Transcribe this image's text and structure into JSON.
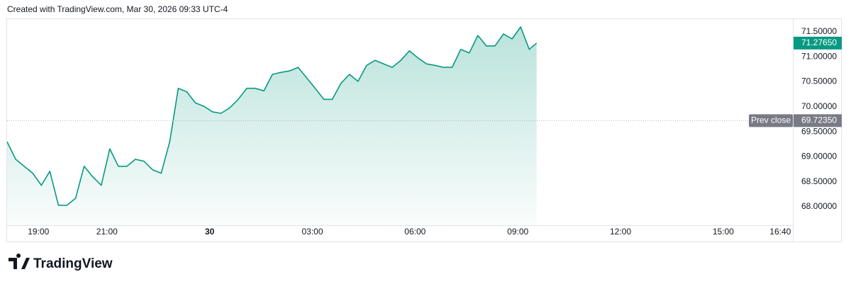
{
  "chart_data": {
    "type": "area",
    "title": "Created with TradingView.com, Mar 30, 2026 09:33 UTC-4",
    "brand": "TradingView",
    "color": "#089981",
    "x": [
      "18:05",
      "18:20",
      "18:35",
      "18:50",
      "19:05",
      "19:20",
      "19:35",
      "19:50",
      "20:05",
      "20:20",
      "20:35",
      "20:50",
      "21:05",
      "21:20",
      "21:35",
      "21:50",
      "22:05",
      "22:20",
      "22:35",
      "22:50",
      "23:05",
      "23:20",
      "23:35",
      "23:50",
      "00:05",
      "00:20",
      "00:35",
      "00:50",
      "01:05",
      "01:20",
      "01:35",
      "01:50",
      "02:05",
      "02:20",
      "02:35",
      "02:50",
      "03:05",
      "03:20",
      "03:35",
      "03:50",
      "04:05",
      "04:20",
      "04:35",
      "04:50",
      "05:05",
      "05:20",
      "05:35",
      "05:50",
      "06:05",
      "06:20",
      "06:35",
      "06:50",
      "07:05",
      "07:20",
      "07:35",
      "07:50",
      "08:05",
      "08:20",
      "08:35",
      "08:50",
      "09:05",
      "09:20",
      "09:33"
    ],
    "values": [
      69.3,
      68.95,
      68.81,
      68.67,
      68.43,
      68.71,
      68.03,
      68.03,
      68.17,
      68.81,
      68.6,
      68.43,
      69.16,
      68.81,
      68.81,
      68.95,
      68.91,
      68.74,
      68.67,
      69.3,
      70.37,
      70.3,
      70.08,
      70.01,
      69.9,
      69.87,
      69.98,
      70.15,
      70.37,
      70.37,
      70.32,
      70.65,
      70.69,
      70.72,
      70.79,
      70.58,
      70.37,
      70.15,
      70.15,
      70.47,
      70.65,
      70.51,
      70.83,
      70.93,
      70.86,
      70.79,
      70.93,
      71.12,
      70.98,
      70.86,
      70.83,
      70.79,
      70.79,
      71.15,
      71.08,
      71.43,
      71.22,
      71.22,
      71.46,
      71.36,
      71.6,
      71.15,
      71.2765
    ],
    "xlim": [
      "18:05",
      "17:02"
    ],
    "xticks": [
      "19:00",
      "21:00",
      {
        "value": "00:00",
        "label": "30"
      },
      "03:00",
      "06:00",
      "09:00",
      "12:00",
      "15:00",
      "16:40"
    ],
    "ylim": [
      67.63,
      71.77
    ],
    "yticks": [
      {
        "value": 68,
        "label": "68.00000"
      },
      {
        "value": 68.5,
        "label": "68.50000"
      },
      {
        "value": 69,
        "label": "69.00000"
      },
      {
        "value": 69.5,
        "label": "69.50000"
      },
      {
        "value": 70,
        "label": "70.00000"
      },
      {
        "value": 70.5,
        "label": "70.50000"
      },
      {
        "value": 71,
        "label": "71.00000"
      },
      {
        "value": 71.5,
        "label": "71.50000"
      }
    ],
    "last_price": {
      "value": 71.2765,
      "label": "71.27650"
    },
    "prev_close": {
      "name": "Prev close",
      "value": 69.7235,
      "label": "69.72350"
    },
    "grid": false
  }
}
